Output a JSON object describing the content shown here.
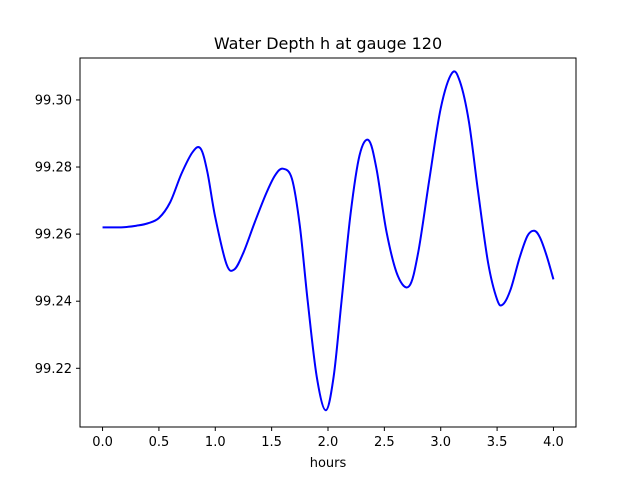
{
  "chart_data": {
    "type": "line",
    "title": "Water Depth h at gauge 120",
    "xlabel": "hours",
    "ylabel": "",
    "xlim": [
      -0.2,
      4.2
    ],
    "ylim": [
      99.2025,
      99.3125
    ],
    "x_ticks": [
      "0.0",
      "0.5",
      "1.0",
      "1.5",
      "2.0",
      "2.5",
      "3.0",
      "3.5",
      "4.0"
    ],
    "y_ticks": [
      "99.22",
      "99.24",
      "99.26",
      "99.28",
      "99.30"
    ],
    "grid": false,
    "legend": "none",
    "series": [
      {
        "color": "#0000ff",
        "x": [
          0.0,
          0.1,
          0.2,
          0.3,
          0.4,
          0.5,
          0.6,
          0.7,
          0.8,
          0.87,
          0.93,
          1.0,
          1.1,
          1.17,
          1.25,
          1.35,
          1.45,
          1.53,
          1.6,
          1.68,
          1.75,
          1.82,
          1.9,
          1.98,
          2.05,
          2.12,
          2.2,
          2.28,
          2.36,
          2.43,
          2.52,
          2.62,
          2.72,
          2.8,
          2.9,
          3.0,
          3.1,
          3.17,
          3.25,
          3.33,
          3.42,
          3.5,
          3.55,
          3.62,
          3.7,
          3.77,
          3.83,
          3.88,
          3.94,
          4.0
        ],
        "y": [
          99.262,
          99.262,
          99.2621,
          99.2625,
          99.2632,
          99.2648,
          99.2695,
          99.278,
          99.2845,
          99.2855,
          99.2785,
          99.265,
          99.251,
          99.2495,
          99.2545,
          99.2635,
          99.272,
          99.2775,
          99.2795,
          99.2765,
          99.2625,
          99.24,
          99.2175,
          99.2075,
          99.2175,
          99.24,
          99.266,
          99.2835,
          99.288,
          99.2795,
          99.2605,
          99.2475,
          99.2445,
          99.2545,
          99.2765,
          99.2975,
          99.308,
          99.3055,
          99.2935,
          99.273,
          99.2515,
          99.2405,
          99.239,
          99.2435,
          99.253,
          99.2595,
          99.261,
          99.259,
          99.2535,
          99.2465
        ]
      }
    ]
  }
}
